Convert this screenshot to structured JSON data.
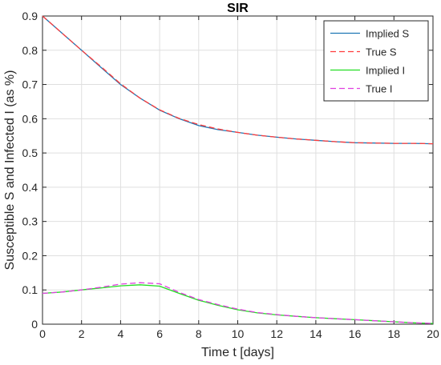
{
  "chart_data": {
    "type": "line",
    "title": "SIR",
    "xlabel": "Time t [days]",
    "ylabel": "Susceptible S and Infected I (as %)",
    "xlim": [
      0,
      20
    ],
    "ylim": [
      0,
      0.9
    ],
    "xticks": [
      0,
      2,
      4,
      6,
      8,
      10,
      12,
      14,
      16,
      18,
      20
    ],
    "yticks": [
      0,
      0.1,
      0.2,
      0.3,
      0.4,
      0.5,
      0.6,
      0.7,
      0.8,
      0.9
    ],
    "xtick_labels": [
      "0",
      "2",
      "4",
      "6",
      "8",
      "10",
      "12",
      "14",
      "16",
      "18",
      "20"
    ],
    "ytick_labels": [
      "0",
      "0.1",
      "0.2",
      "0.3",
      "0.4",
      "0.5",
      "0.6",
      "0.7",
      "0.8",
      "0.9"
    ],
    "grid": true,
    "legend_position": "top-right",
    "x": [
      0,
      1,
      2,
      3,
      4,
      5,
      6,
      7,
      8,
      9,
      10,
      11,
      12,
      13,
      14,
      15,
      16,
      17,
      18,
      19,
      20
    ],
    "series": [
      {
        "name": "Implied S",
        "color": "#1f77b4",
        "dash": "solid",
        "values": [
          0.9,
          0.85,
          0.8,
          0.75,
          0.7,
          0.66,
          0.625,
          0.6,
          0.58,
          0.568,
          0.56,
          0.552,
          0.546,
          0.541,
          0.537,
          0.533,
          0.53,
          0.529,
          0.528,
          0.528,
          0.527
        ]
      },
      {
        "name": "True S",
        "color": "#ff3b3b",
        "dash": "dashed",
        "values": [
          0.9,
          0.85,
          0.8,
          0.752,
          0.702,
          0.66,
          0.626,
          0.601,
          0.583,
          0.57,
          0.56,
          0.552,
          0.546,
          0.541,
          0.537,
          0.533,
          0.53,
          0.529,
          0.528,
          0.528,
          0.527
        ]
      },
      {
        "name": "Implied I",
        "color": "#22dd22",
        "dash": "solid",
        "values": [
          0.09,
          0.094,
          0.1,
          0.106,
          0.112,
          0.115,
          0.111,
          0.09,
          0.07,
          0.055,
          0.042,
          0.033,
          0.027,
          0.023,
          0.019,
          0.016,
          0.013,
          0.01,
          0.007,
          0.004,
          0.002
        ]
      },
      {
        "name": "True I",
        "color": "#e040e0",
        "dash": "dashed",
        "values": [
          0.09,
          0.094,
          0.1,
          0.108,
          0.117,
          0.121,
          0.118,
          0.093,
          0.072,
          0.057,
          0.044,
          0.034,
          0.028,
          0.023,
          0.019,
          0.016,
          0.013,
          0.01,
          0.007,
          0.004,
          0.002
        ]
      }
    ]
  }
}
